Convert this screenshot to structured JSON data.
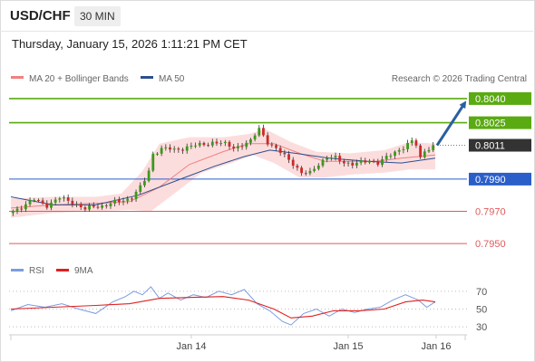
{
  "header": {
    "symbol": "USD/CHF",
    "timeframe": "30 MIN"
  },
  "timestamp": "Thursday, January 15, 2026 1:11:21 PM CET",
  "colors": {
    "resistance": "#5aaa12",
    "support": "#2a5fc9",
    "weak_level": "#e05a5a",
    "candle_up": "#3a9a1a",
    "candle_down": "#cc2a2a",
    "bollinger_fill": "#fbd7d7",
    "ma20": "#f08080",
    "ma50": "#2c4f8f",
    "rsi": "#7b9de0",
    "rsi_ma": "#e02020",
    "arrow": "#2a5fa0",
    "current_tag": "#333333"
  },
  "chart_data": [
    {
      "type": "candlestick",
      "legend": [
        {
          "label": "MA 20 + Bollinger Bands"
        },
        {
          "label": "MA 50"
        }
      ],
      "legend_position": "top-left",
      "credit": "Research © 2026 Trading Central",
      "x_tick_labels": [
        "Jan 14",
        "Jan 15",
        "Jan 16"
      ],
      "y_range": [
        0.7945,
        0.8045
      ],
      "levels": [
        {
          "label": "0.8040",
          "value": 0.804,
          "kind": "resistance",
          "style": "tag"
        },
        {
          "label": "0.8025",
          "value": 0.8025,
          "kind": "resistance",
          "style": "tag"
        },
        {
          "label": "0.8011",
          "value": 0.8011,
          "kind": "current",
          "style": "tag"
        },
        {
          "label": "0.7990",
          "value": 0.799,
          "kind": "support",
          "style": "tag"
        },
        {
          "label": "0.7970",
          "value": 0.797,
          "kind": "weak",
          "style": "text"
        },
        {
          "label": "0.7950",
          "value": 0.795,
          "kind": "weak",
          "style": "text"
        }
      ],
      "price_path": [
        [
          0,
          0.7969
        ],
        [
          6,
          0.7973
        ],
        [
          12,
          0.7977
        ],
        [
          18,
          0.7974
        ],
        [
          24,
          0.7978
        ],
        [
          30,
          0.7976
        ],
        [
          36,
          0.7971
        ],
        [
          40,
          0.7973
        ],
        [
          46,
          0.7974
        ],
        [
          52,
          0.7976
        ],
        [
          58,
          0.7979
        ],
        [
          63,
          0.7986
        ],
        [
          66,
          0.7995
        ],
        [
          68,
          0.8006
        ],
        [
          72,
          0.8009
        ],
        [
          78,
          0.8008
        ],
        [
          84,
          0.801
        ],
        [
          90,
          0.8011
        ],
        [
          96,
          0.8013
        ],
        [
          100,
          0.8012
        ],
        [
          106,
          0.801
        ],
        [
          110,
          0.8011
        ],
        [
          114,
          0.8013
        ],
        [
          118,
          0.8022
        ],
        [
          122,
          0.8013
        ],
        [
          126,
          0.8008
        ],
        [
          130,
          0.8005
        ],
        [
          134,
          0.8
        ],
        [
          138,
          0.7993
        ],
        [
          142,
          0.7994
        ],
        [
          146,
          0.8
        ],
        [
          150,
          0.8003
        ],
        [
          154,
          0.8003
        ],
        [
          158,
          0.8001
        ],
        [
          162,
          0.7999
        ],
        [
          166,
          0.8
        ],
        [
          170,
          0.8002
        ],
        [
          174,
          0.8
        ],
        [
          178,
          0.8003
        ],
        [
          182,
          0.8007
        ],
        [
          186,
          0.801
        ],
        [
          190,
          0.8013
        ],
        [
          192,
          0.8011
        ],
        [
          194,
          0.8003
        ],
        [
          196,
          0.8008
        ],
        [
          200,
          0.8011
        ]
      ],
      "ma20": [
        [
          0,
          0.7972
        ],
        [
          20,
          0.7974
        ],
        [
          40,
          0.7975
        ],
        [
          56,
          0.7976
        ],
        [
          70,
          0.7985
        ],
        [
          84,
          0.7999
        ],
        [
          100,
          0.8007
        ],
        [
          112,
          0.8012
        ],
        [
          124,
          0.8012
        ],
        [
          136,
          0.8006
        ],
        [
          148,
          0.8001
        ],
        [
          160,
          0.8001
        ],
        [
          172,
          0.8001
        ],
        [
          184,
          0.8003
        ],
        [
          200,
          0.8005
        ]
      ],
      "ma50": [
        [
          0,
          0.7979
        ],
        [
          20,
          0.7974
        ],
        [
          40,
          0.7974
        ],
        [
          60,
          0.798
        ],
        [
          80,
          0.799
        ],
        [
          96,
          0.7998
        ],
        [
          110,
          0.8004
        ],
        [
          122,
          0.8008
        ],
        [
          134,
          0.8006
        ],
        [
          150,
          0.8003
        ],
        [
          168,
          0.8001
        ],
        [
          184,
          0.8
        ],
        [
          200,
          0.8003
        ]
      ],
      "bollinger_upper": [
        [
          0,
          0.7978
        ],
        [
          20,
          0.7979
        ],
        [
          40,
          0.7979
        ],
        [
          52,
          0.7981
        ],
        [
          62,
          0.7995
        ],
        [
          70,
          0.8012
        ],
        [
          84,
          0.8016
        ],
        [
          100,
          0.8016
        ],
        [
          112,
          0.8018
        ],
        [
          120,
          0.8021
        ],
        [
          132,
          0.8013
        ],
        [
          144,
          0.8007
        ],
        [
          160,
          0.8006
        ],
        [
          176,
          0.8008
        ],
        [
          188,
          0.8013
        ],
        [
          200,
          0.8012
        ]
      ],
      "bollinger_lower": [
        [
          0,
          0.7966
        ],
        [
          20,
          0.7969
        ],
        [
          40,
          0.797
        ],
        [
          56,
          0.7971
        ],
        [
          66,
          0.797
        ],
        [
          76,
          0.798
        ],
        [
          90,
          0.7994
        ],
        [
          104,
          0.8
        ],
        [
          114,
          0.8005
        ],
        [
          124,
          0.8
        ],
        [
          136,
          0.7991
        ],
        [
          148,
          0.7991
        ],
        [
          162,
          0.7993
        ],
        [
          176,
          0.7994
        ],
        [
          188,
          0.7996
        ],
        [
          200,
          0.7996
        ]
      ],
      "forecast_arrow": {
        "from": 0.8011,
        "to": 0.8039
      }
    },
    {
      "type": "line",
      "legend": [
        {
          "label": "RSI"
        },
        {
          "label": "9MA"
        }
      ],
      "legend_position": "top-left",
      "y_range": [
        25,
        80
      ],
      "y_tick_labels": [
        "70",
        "50",
        "30"
      ],
      "y_ticks": [
        70,
        50,
        30
      ],
      "rsi": [
        [
          0,
          48
        ],
        [
          8,
          55
        ],
        [
          16,
          52
        ],
        [
          24,
          56
        ],
        [
          32,
          50
        ],
        [
          40,
          45
        ],
        [
          48,
          58
        ],
        [
          54,
          64
        ],
        [
          58,
          70
        ],
        [
          62,
          66
        ],
        [
          66,
          75
        ],
        [
          70,
          62
        ],
        [
          74,
          68
        ],
        [
          80,
          60
        ],
        [
          86,
          66
        ],
        [
          92,
          63
        ],
        [
          98,
          70
        ],
        [
          104,
          66
        ],
        [
          110,
          72
        ],
        [
          116,
          56
        ],
        [
          122,
          48
        ],
        [
          128,
          36
        ],
        [
          132,
          32
        ],
        [
          138,
          45
        ],
        [
          144,
          50
        ],
        [
          150,
          42
        ],
        [
          156,
          50
        ],
        [
          162,
          46
        ],
        [
          168,
          50
        ],
        [
          174,
          52
        ],
        [
          180,
          60
        ],
        [
          186,
          66
        ],
        [
          192,
          60
        ],
        [
          196,
          52
        ],
        [
          200,
          58
        ]
      ],
      "rsi_ma": [
        [
          0,
          50
        ],
        [
          20,
          52
        ],
        [
          40,
          54
        ],
        [
          56,
          56
        ],
        [
          70,
          62
        ],
        [
          84,
          63
        ],
        [
          100,
          64
        ],
        [
          112,
          60
        ],
        [
          124,
          50
        ],
        [
          132,
          40
        ],
        [
          142,
          42
        ],
        [
          152,
          48
        ],
        [
          164,
          48
        ],
        [
          176,
          50
        ],
        [
          186,
          58
        ],
        [
          194,
          60
        ],
        [
          200,
          58
        ]
      ]
    }
  ]
}
